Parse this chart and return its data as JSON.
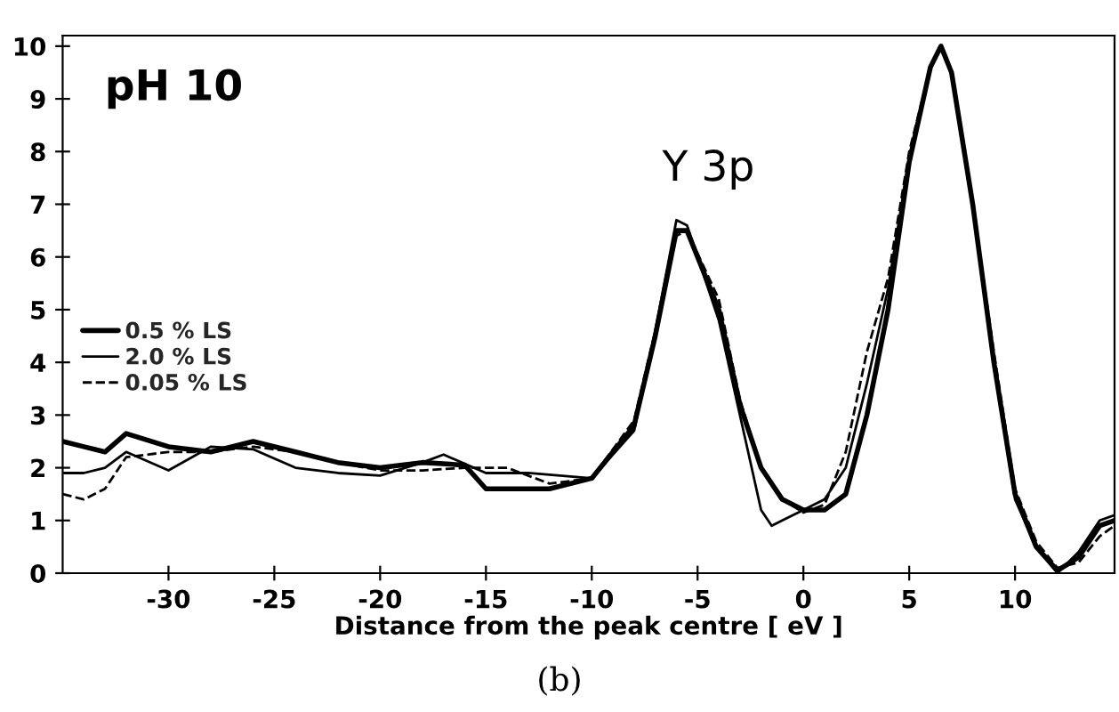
{
  "chart_data": {
    "type": "line",
    "xlabel": "Distance from the peak centre [ eV ]",
    "annotations": [
      "pH 10",
      "Y 3p",
      "(b)"
    ],
    "xlim": [
      -35,
      14.7
    ],
    "ylim": [
      0,
      10.2
    ],
    "xticks": [
      -30,
      -25,
      -20,
      -15,
      -10,
      -5,
      0,
      5,
      10
    ],
    "yticks": [
      0,
      1,
      2,
      3,
      4,
      5,
      6,
      7,
      8,
      9,
      10
    ],
    "grid": false,
    "legend": "left",
    "marker": "none",
    "series": [
      {
        "name": "0.5 % LS",
        "color": "#000000",
        "line_style": "solid",
        "x": [
          -35,
          -34,
          -33,
          -32,
          -30,
          -28,
          -26,
          -24,
          -22,
          -20,
          -18,
          -16,
          -15,
          -12,
          -10,
          -8,
          -7,
          -6,
          -5.5,
          -4,
          -3,
          -2,
          -1,
          0,
          1,
          2,
          3,
          4,
          5,
          6,
          6.5,
          7,
          8,
          9,
          10,
          11,
          12,
          13,
          14,
          14.7
        ],
        "values": [
          2.5,
          2.4,
          2.3,
          2.65,
          2.4,
          2.3,
          2.5,
          2.3,
          2.1,
          2.0,
          2.1,
          2.05,
          1.6,
          1.6,
          1.8,
          2.8,
          4.5,
          6.5,
          6.5,
          5.0,
          3.2,
          2.0,
          1.4,
          1.2,
          1.2,
          1.5,
          3.0,
          5.0,
          7.8,
          9.6,
          10,
          9.5,
          7.0,
          4.0,
          1.5,
          0.5,
          0.05,
          0.3,
          0.9,
          1.0
        ]
      },
      {
        "name": "2.0 % LS",
        "color": "#000000",
        "line_style": "solid",
        "x": [
          -35,
          -34,
          -33,
          -32,
          -30,
          -28,
          -26,
          -24,
          -22,
          -20,
          -18,
          -17,
          -15,
          -13,
          -10,
          -8,
          -7,
          -6,
          -5.5,
          -4,
          -3,
          -2,
          -1.5,
          -1,
          0,
          1,
          2,
          3,
          4,
          5,
          6,
          6.5,
          7,
          8,
          9,
          10,
          11,
          12,
          13,
          14,
          14.7
        ],
        "values": [
          1.9,
          1.9,
          2.0,
          2.3,
          1.95,
          2.4,
          2.35,
          2.0,
          1.9,
          1.85,
          2.1,
          2.25,
          1.9,
          1.9,
          1.8,
          2.7,
          4.6,
          6.7,
          6.6,
          4.8,
          3.0,
          1.2,
          0.9,
          1.0,
          1.2,
          1.4,
          2.0,
          3.6,
          5.4,
          7.9,
          9.6,
          10,
          9.5,
          7.0,
          4.0,
          1.4,
          0.5,
          0.0,
          0.4,
          1.0,
          1.1
        ]
      },
      {
        "name": "0.05 % LS",
        "color": "#000000",
        "line_style": "dashed",
        "x": [
          -35,
          -34,
          -33,
          -32,
          -30,
          -28,
          -26,
          -24,
          -22,
          -20,
          -18,
          -16,
          -14,
          -12,
          -10,
          -8,
          -7,
          -6,
          -5.5,
          -4,
          -3,
          -2,
          -1,
          0,
          1,
          2,
          3,
          4,
          5,
          6,
          6.5,
          7,
          8,
          9,
          10,
          11,
          12,
          13,
          14,
          14.7
        ],
        "values": [
          1.5,
          1.4,
          1.6,
          2.2,
          2.3,
          2.3,
          2.4,
          2.3,
          2.1,
          1.95,
          1.95,
          2.0,
          2.0,
          1.7,
          1.8,
          2.9,
          4.6,
          6.4,
          6.5,
          5.2,
          3.3,
          2.0,
          1.4,
          1.15,
          1.3,
          2.3,
          4.2,
          5.6,
          8.0,
          9.6,
          10,
          9.5,
          7.0,
          4.2,
          1.6,
          0.6,
          0.1,
          0.2,
          0.7,
          0.9
        ]
      }
    ]
  }
}
